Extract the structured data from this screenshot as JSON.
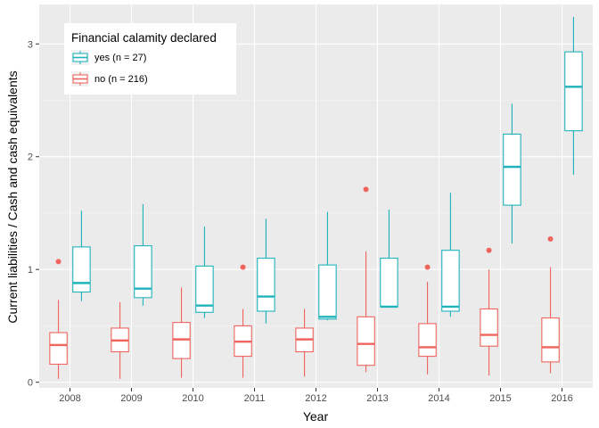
{
  "chart_data": {
    "type": "boxplot",
    "xlabel": "Year",
    "ylabel": "Current liabilities / Cash and cash equivalents",
    "ylim": [
      -0.05,
      3.35
    ],
    "y_ticks": [
      0,
      1,
      2,
      3
    ],
    "categories": [
      "2008",
      "2009",
      "2010",
      "2011",
      "2012",
      "2013",
      "2014",
      "2015",
      "2016"
    ],
    "grid": true,
    "legend": {
      "title": "Financial calamity declared",
      "placement": "top-left",
      "entries": [
        {
          "label": "yes (n = 27)",
          "color": "#1fb3bb"
        },
        {
          "label": "no (n = 216)",
          "color": "#f0645e"
        }
      ]
    },
    "series": [
      {
        "name": "yes (n = 27)",
        "color": "#1fb3bb",
        "boxes": [
          {
            "x": "2008",
            "min": 0.72,
            "q1": 0.8,
            "median": 0.88,
            "q3": 1.2,
            "max": 1.52,
            "outliers": []
          },
          {
            "x": "2009",
            "min": 0.68,
            "q1": 0.75,
            "median": 0.83,
            "q3": 1.21,
            "max": 1.58,
            "outliers": []
          },
          {
            "x": "2010",
            "min": 0.57,
            "q1": 0.62,
            "median": 0.68,
            "q3": 1.03,
            "max": 1.38,
            "outliers": []
          },
          {
            "x": "2011",
            "min": 0.52,
            "q1": 0.63,
            "median": 0.76,
            "q3": 1.1,
            "max": 1.45,
            "outliers": []
          },
          {
            "x": "2012",
            "min": 0.55,
            "q1": 0.56,
            "median": 0.58,
            "q3": 1.04,
            "max": 1.51,
            "outliers": []
          },
          {
            "x": "2013",
            "min": 0.67,
            "q1": 0.67,
            "median": 0.67,
            "q3": 1.1,
            "max": 1.53,
            "outliers": []
          },
          {
            "x": "2014",
            "min": 0.58,
            "q1": 0.63,
            "median": 0.67,
            "q3": 1.17,
            "max": 1.68,
            "outliers": []
          },
          {
            "x": "2015",
            "min": 1.23,
            "q1": 1.57,
            "median": 1.91,
            "q3": 2.2,
            "max": 2.47,
            "outliers": []
          },
          {
            "x": "2016",
            "min": 1.84,
            "q1": 2.23,
            "median": 2.62,
            "q3": 2.93,
            "max": 3.24,
            "outliers": []
          }
        ]
      },
      {
        "name": "no (n = 216)",
        "color": "#f0645e",
        "boxes": [
          {
            "x": "2008",
            "min": 0.03,
            "q1": 0.16,
            "median": 0.33,
            "q3": 0.44,
            "max": 0.73,
            "outliers": [
              1.07
            ]
          },
          {
            "x": "2009",
            "min": 0.03,
            "q1": 0.27,
            "median": 0.37,
            "q3": 0.48,
            "max": 0.71,
            "outliers": []
          },
          {
            "x": "2010",
            "min": 0.04,
            "q1": 0.21,
            "median": 0.38,
            "q3": 0.53,
            "max": 0.84,
            "outliers": []
          },
          {
            "x": "2011",
            "min": 0.04,
            "q1": 0.23,
            "median": 0.36,
            "q3": 0.5,
            "max": 0.65,
            "outliers": [
              1.02
            ]
          },
          {
            "x": "2012",
            "min": 0.05,
            "q1": 0.27,
            "median": 0.38,
            "q3": 0.48,
            "max": 0.65,
            "outliers": []
          },
          {
            "x": "2013",
            "min": 0.09,
            "q1": 0.15,
            "median": 0.34,
            "q3": 0.58,
            "max": 1.16,
            "outliers": [
              1.71
            ]
          },
          {
            "x": "2014",
            "min": 0.07,
            "q1": 0.23,
            "median": 0.31,
            "q3": 0.52,
            "max": 0.89,
            "outliers": [
              1.02
            ]
          },
          {
            "x": "2015",
            "min": 0.06,
            "q1": 0.32,
            "median": 0.42,
            "q3": 0.65,
            "max": 1.0,
            "outliers": [
              1.17
            ]
          },
          {
            "x": "2016",
            "min": 0.08,
            "q1": 0.18,
            "median": 0.31,
            "q3": 0.57,
            "max": 1.02,
            "outliers": [
              1.27
            ]
          }
        ]
      }
    ]
  }
}
